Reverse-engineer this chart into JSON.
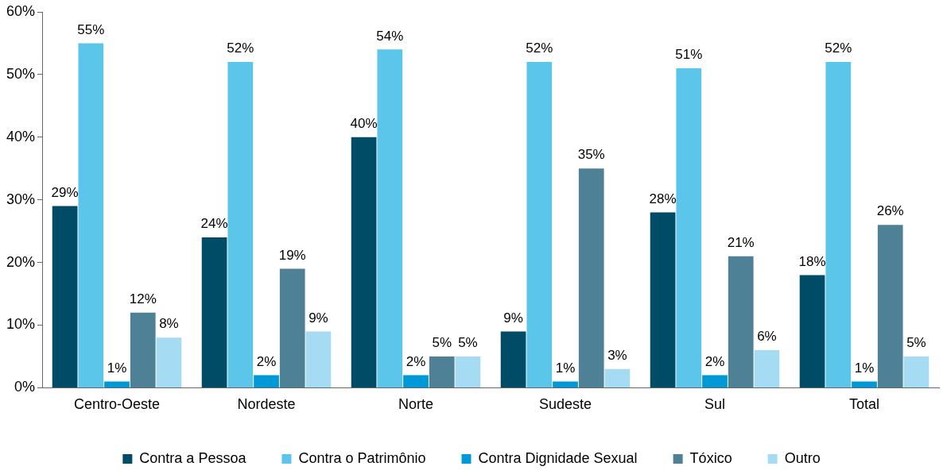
{
  "chart_data": {
    "type": "bar",
    "categories": [
      "Centro-Oeste",
      "Nordeste",
      "Norte",
      "Sudeste",
      "Sul",
      "Total"
    ],
    "series": [
      {
        "name": "Contra a Pessoa",
        "color": "#004c66",
        "values": [
          29,
          24,
          40,
          9,
          28,
          18
        ],
        "value_labels": [
          "29%",
          "24%",
          "40%",
          "9%",
          "28%",
          "18%"
        ]
      },
      {
        "name": "Contra o Patrimônio",
        "color": "#5bc5ea",
        "values": [
          55,
          52,
          54,
          52,
          51,
          52
        ],
        "value_labels": [
          "55%",
          "52%",
          "54%",
          "52%",
          "51%",
          "52%"
        ]
      },
      {
        "name": "Contra Dignidade Sexual",
        "color": "#0099d8",
        "values": [
          1,
          2,
          2,
          1,
          2,
          1
        ],
        "value_labels": [
          "1%",
          "2%",
          "2%",
          "1%",
          "2%",
          "1%"
        ]
      },
      {
        "name": "Tóxico",
        "color": "#4f8196",
        "values": [
          12,
          19,
          5,
          35,
          21,
          26
        ],
        "value_labels": [
          "12%",
          "19%",
          "5%",
          "35%",
          "21%",
          "26%"
        ]
      },
      {
        "name": "Outro",
        "color": "#a6dcf3",
        "values": [
          8,
          9,
          5,
          3,
          6,
          5
        ],
        "value_labels": [
          "8%",
          "9%",
          "5%",
          "3%",
          "6%",
          "5%"
        ]
      }
    ],
    "ylim": [
      0,
      60
    ],
    "yticks": [
      {
        "value": 0,
        "label": "0%"
      },
      {
        "value": 10,
        "label": "10%"
      },
      {
        "value": 20,
        "label": "20%"
      },
      {
        "value": 30,
        "label": "30%"
      },
      {
        "value": 40,
        "label": "40%"
      },
      {
        "value": 50,
        "label": "50%"
      },
      {
        "value": 60,
        "label": "60%"
      }
    ],
    "grid": false,
    "legend": "bottom"
  }
}
